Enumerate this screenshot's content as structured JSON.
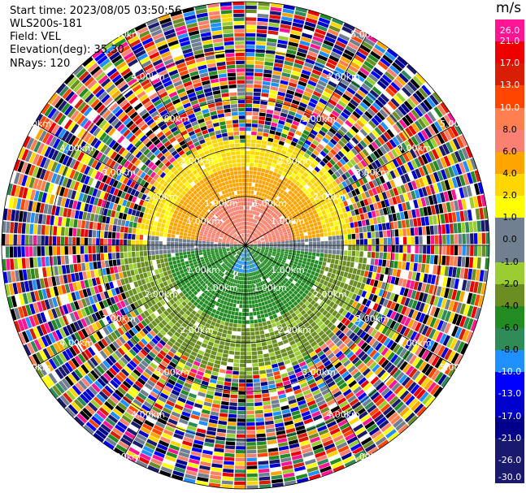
{
  "info": {
    "start_time": "Start time: 2023/08/05 03:50:56",
    "instrument": "WLS200s-181",
    "field": "Field: VEL",
    "elevation": "Elevation(deg): 35.30",
    "nrays": "NRays: 120"
  },
  "colorbar": {
    "unit": "m/s",
    "bins": [
      {
        "lo": 21.0,
        "hi": 26.0,
        "color": "#ff1493"
      },
      {
        "lo": 17.0,
        "hi": 21.0,
        "color": "#ee0000"
      },
      {
        "lo": 13.0,
        "hi": 17.0,
        "color": "#d81e05"
      },
      {
        "lo": 10.0,
        "hi": 13.0,
        "color": "#ff4500"
      },
      {
        "lo": 8.0,
        "hi": 10.0,
        "color": "#ff7f50"
      },
      {
        "lo": 6.0,
        "hi": 8.0,
        "color": "#fa8072"
      },
      {
        "lo": 4.0,
        "hi": 6.0,
        "color": "#ffa500"
      },
      {
        "lo": 2.0,
        "hi": 4.0,
        "color": "#ffd700"
      },
      {
        "lo": 1.0,
        "hi": 2.0,
        "color": "#ffff00"
      },
      {
        "lo": 0.0,
        "hi": 1.0,
        "color": "#708090"
      },
      {
        "lo": -1.0,
        "hi": 0.0,
        "color": "#708090"
      },
      {
        "lo": -2.0,
        "hi": -1.0,
        "color": "#9acd32"
      },
      {
        "lo": -4.0,
        "hi": -2.0,
        "color": "#6b8e23"
      },
      {
        "lo": -6.0,
        "hi": -4.0,
        "color": "#228b22"
      },
      {
        "lo": -8.0,
        "hi": -6.0,
        "color": "#2e8b57"
      },
      {
        "lo": -10.0,
        "hi": -8.0,
        "color": "#1e90ff"
      },
      {
        "lo": -13.0,
        "hi": -10.0,
        "color": "#0000ff"
      },
      {
        "lo": -17.0,
        "hi": -13.0,
        "color": "#0000cd"
      },
      {
        "lo": -21.0,
        "hi": -17.0,
        "color": "#00008b"
      },
      {
        "lo": -26.0,
        "hi": -21.0,
        "color": "#191970"
      },
      {
        "lo": -30.0,
        "hi": -26.0,
        "color": "#191970"
      }
    ],
    "ticks": [
      "26.0",
      "21.0",
      "17.0",
      "13.0",
      "10.0",
      "8.0",
      "6.0",
      "4.0",
      "2.0",
      "1.0",
      "0.0",
      "-1.0",
      "-2.0",
      "-4.0",
      "-6.0",
      "-8.0",
      "-10.0",
      "-13.0",
      "-17.0",
      "-21.0",
      "-26.0",
      "-30.0"
    ]
  },
  "chart_data": {
    "type": "heatmap",
    "projection": "polar PPI",
    "field": "VEL",
    "units": "m/s",
    "nrays": 120,
    "max_range_km": 5.0,
    "range_ring_labels": [
      "1.00km",
      "2.00km",
      "3.00km",
      "4.00km",
      "5.00km"
    ],
    "spoke_angles_deg": [
      0,
      30,
      60,
      90,
      120,
      150,
      180,
      210,
      240,
      270,
      300,
      330
    ],
    "vmin": -30.0,
    "vmax": 26.0,
    "structure": [
      {
        "sector": "north half (azimuth 270-90 via 0)",
        "range_km": [
          0.0,
          1.0
        ],
        "velocity_ms": 7.0,
        "color": "salmon"
      },
      {
        "sector": "north half",
        "range_km": [
          1.0,
          1.6
        ],
        "velocity_ms": 4.5,
        "color": "orange"
      },
      {
        "sector": "north half",
        "range_km": [
          1.6,
          2.1
        ],
        "velocity_ms": 2.5,
        "color": "gold/yellow"
      },
      {
        "sector": "east-west band",
        "range_km": [
          0.0,
          2.0
        ],
        "velocity_ms": 0.0,
        "color": "gray"
      },
      {
        "sector": "south half (azimuth 90-270 via 180)",
        "range_km": [
          0.0,
          0.6
        ],
        "velocity_ms": -9.0,
        "color": "blue"
      },
      {
        "sector": "south half",
        "range_km": [
          0.6,
          1.6
        ],
        "velocity_ms": -5.0,
        "color": "green"
      },
      {
        "sector": "south half",
        "range_km": [
          1.6,
          2.4
        ],
        "velocity_ms": -3.0,
        "color": "olive"
      },
      {
        "sector": "all",
        "range_km": [
          2.1,
          5.0
        ],
        "velocity_ms": null,
        "color": "noise (random velocities)"
      }
    ]
  }
}
